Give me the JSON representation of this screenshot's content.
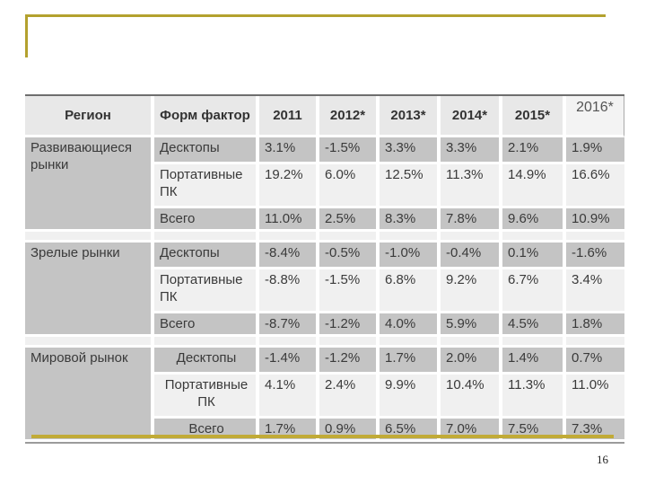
{
  "page": {
    "number": "16"
  },
  "theme": {
    "gold": "#b3a12e",
    "gold_light": "#c1ab37",
    "header_bg": "#e8e8e8",
    "row_dark_bg": "#c4c4c4",
    "row_light_bg": "#f0f0f0",
    "text": "#3a3a3a"
  },
  "table": {
    "headers": [
      "Регион",
      "Форм фактор",
      "2011",
      "2012*",
      "2013*",
      "2014*",
      "2015*",
      "2016*"
    ],
    "groups": [
      {
        "region": "Развивающиеся рынки",
        "rows": [
          {
            "label": "Десктопы",
            "values": [
              "3.1%",
              "-1.5%",
              "3.3%",
              "3.3%",
              "2.1%",
              "1.9%"
            ]
          },
          {
            "label": "Портативные ПК",
            "values": [
              "19.2%",
              "6.0%",
              "12.5%",
              "11.3%",
              "14.9%",
              "16.6%"
            ]
          },
          {
            "label": "Всего",
            "values": [
              "11.0%",
              "2.5%",
              "8.3%",
              "7.8%",
              "9.6%",
              "10.9%"
            ]
          }
        ]
      },
      {
        "region": "Зрелые рынки",
        "rows": [
          {
            "label": "Десктопы",
            "values": [
              "-8.4%",
              "-0.5%",
              "-1.0%",
              "-0.4%",
              "0.1%",
              "-1.6%"
            ]
          },
          {
            "label": "Портативные ПК",
            "values": [
              "-8.8%",
              "-1.5%",
              "6.8%",
              "9.2%",
              "6.7%",
              "3.4%"
            ]
          },
          {
            "label": "Всего",
            "values": [
              "-8.7%",
              "-1.2%",
              "4.0%",
              "5.9%",
              "4.5%",
              "1.8%"
            ]
          }
        ]
      },
      {
        "region": "Мировой рынок",
        "rows": [
          {
            "label": "Десктопы",
            "values": [
              "-1.4%",
              "-1.2%",
              "1.7%",
              "2.0%",
              "1.4%",
              "0.7%"
            ]
          },
          {
            "label": "Портативные ПК",
            "values": [
              "4.1%",
              "2.4%",
              "9.9%",
              "10.4%",
              "11.3%",
              "11.0%"
            ]
          },
          {
            "label": "Всего",
            "values": [
              "1.7%",
              "0.9%",
              "6.5%",
              "7.0%",
              "7.5%",
              "7.3%"
            ]
          }
        ]
      }
    ]
  }
}
